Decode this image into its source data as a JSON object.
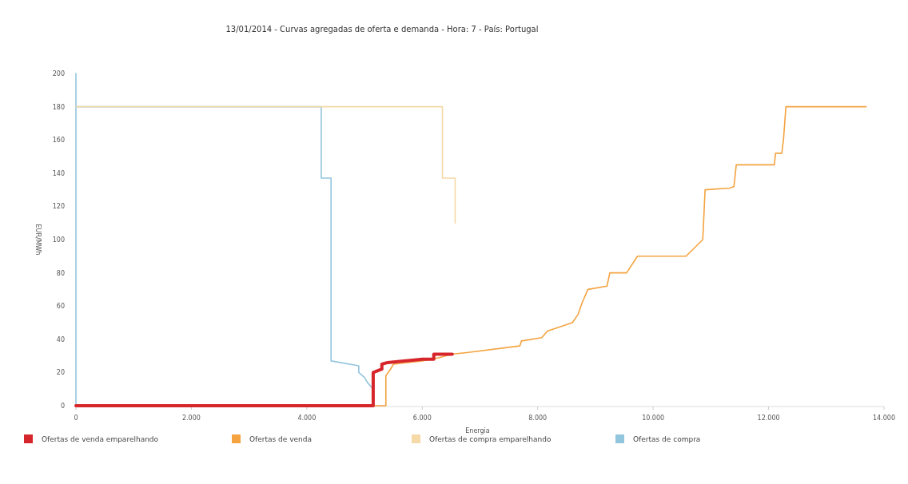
{
  "chart_data": {
    "type": "line",
    "title": "13/01/2014 - Curvas agregadas de oferta e demanda - Hora: 7 - País: Portugal",
    "xlabel": "Energia",
    "ylabel": "EUR/MWh",
    "xlim": [
      0,
      14000
    ],
    "xticks": [
      0,
      {
        "value": 2000,
        "label": "2.000"
      },
      {
        "value": 4000,
        "label": "4.000"
      },
      {
        "value": 6000,
        "label": "6.000"
      },
      {
        "value": 8000,
        "label": "8.000"
      },
      {
        "value": 10000,
        "label": "10.000"
      },
      {
        "value": 12000,
        "label": "12.000"
      },
      {
        "value": 14000,
        "label": "14.000"
      }
    ],
    "ylim": [
      0,
      200
    ],
    "yticks": [
      0,
      20,
      40,
      60,
      80,
      100,
      120,
      140,
      160,
      180,
      200
    ],
    "grid": false,
    "legend": "bottom",
    "marker": "none",
    "line_style": "solid",
    "series": [
      {
        "name": "Ofertas de compra",
        "color": "#92c5de",
        "x": [
          0,
          0,
          0,
          4250,
          4250,
          4420,
          4420,
          4900,
          4900,
          5000,
          5050,
          5150
        ],
        "values": [
          0,
          200,
          180,
          180,
          137,
          137,
          27,
          24,
          20,
          17,
          14,
          10
        ]
      },
      {
        "name": "Ofertas de compra emparelhando",
        "color": "#f5d9a6",
        "x": [
          0,
          6350,
          6350,
          6570,
          6570
        ],
        "values": [
          180,
          180,
          137,
          137,
          110
        ]
      },
      {
        "name": "Ofertas de venda",
        "color": "#f4a340",
        "x": [
          0,
          5370,
          5370,
          5450,
          5500,
          6000,
          6300,
          6500,
          6770,
          7690,
          7720,
          8070,
          8170,
          8600,
          8700,
          8770,
          8870,
          9200,
          9250,
          9540,
          9730,
          10570,
          10860,
          10900,
          11330,
          11400,
          11440,
          12100,
          12120,
          12230,
          12260,
          12300,
          13690
        ],
        "values": [
          0,
          0,
          18,
          22,
          25,
          27,
          29,
          31,
          32,
          36,
          39,
          41,
          45,
          50,
          55,
          62,
          70,
          72,
          80,
          80,
          90,
          90,
          100,
          130,
          131,
          132,
          145,
          145,
          152,
          152,
          161,
          180,
          180
        ]
      },
      {
        "name": "Ofertas de venda emparelhando",
        "color": "#d7262b",
        "x": [
          0,
          5150,
          5150,
          5300,
          5300,
          5400,
          6000,
          6200,
          6200,
          6520
        ],
        "values": [
          0,
          0,
          20,
          22,
          25,
          26,
          28,
          28,
          31,
          31
        ]
      }
    ]
  }
}
